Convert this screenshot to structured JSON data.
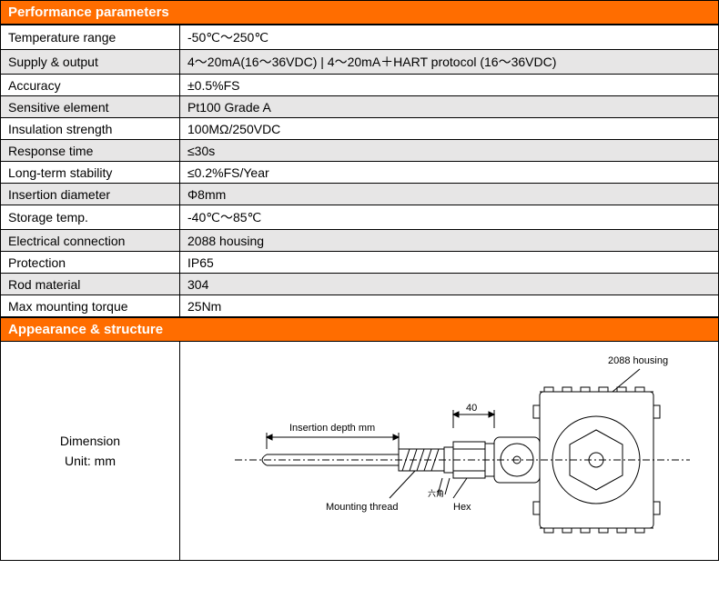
{
  "sections": {
    "performance_header": "Performance parameters",
    "appearance_header": "Appearance & structure"
  },
  "params": [
    {
      "label": "Temperature range",
      "value": "-50℃～250℃",
      "shade": false
    },
    {
      "label": "Supply & output",
      "value": "4～20mA(16～36VDC)   | 4～20mA＋HART protocol (16～36VDC)",
      "shade": true
    },
    {
      "label": "Accuracy",
      "value": "±0.5%FS",
      "shade": false
    },
    {
      "label": "Sensitive element",
      "value": "Pt100 Grade A",
      "shade": true
    },
    {
      "label": "Insulation strength",
      "value": "100MΩ/250VDC",
      "shade": false
    },
    {
      "label": "Response time",
      "value": "≤30s",
      "shade": true
    },
    {
      "label": "Long-term stability",
      "value": "≤0.2%FS/Year",
      "shade": false
    },
    {
      "label": "Insertion diameter",
      "value": "Φ8mm",
      "shade": true
    },
    {
      "label": "Storage temp.",
      "value": "-40℃～85℃",
      "shade": false
    },
    {
      "label": "Electrical connection",
      "value": "2088 housing",
      "shade": true
    },
    {
      "label": "Protection",
      "value": "IP65",
      "shade": false
    },
    {
      "label": "Rod material",
      "value": "304",
      "shade": true
    },
    {
      "label": "Max mounting torque",
      "value": "25Nm",
      "shade": false
    }
  ],
  "dimension": {
    "title": "Dimension",
    "unit": "Unit: mm"
  },
  "diagram": {
    "labels": {
      "housing": "2088 housing",
      "insertion": "Insertion depth  mm",
      "thread": "Mounting thread",
      "hex": "Hex",
      "span40": "40"
    },
    "colors": {
      "stroke": "#000000",
      "bg": "#ffffff",
      "text": "#000000"
    },
    "font_size_label": 11
  }
}
